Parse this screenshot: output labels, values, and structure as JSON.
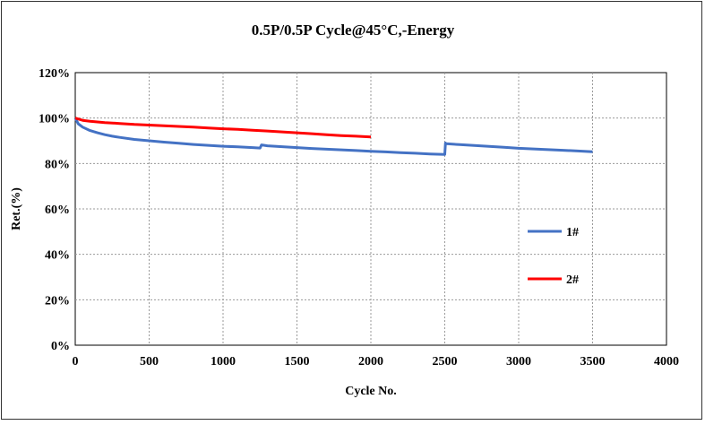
{
  "chart_data": {
    "type": "line",
    "title": "0.5P/0.5P Cycle@45°C,-Energy",
    "xlabel": "Cycle No.",
    "ylabel": "Ret.(%)",
    "xlim": [
      0,
      4000
    ],
    "ylim": [
      0,
      120
    ],
    "x_ticks": [
      0,
      500,
      1000,
      1500,
      2000,
      2500,
      3000,
      3500,
      4000
    ],
    "y_ticks": [
      0,
      20,
      40,
      60,
      80,
      100,
      120
    ],
    "x_tick_labels": [
      "0",
      "500",
      "1000",
      "1500",
      "2000",
      "2500",
      "3000",
      "3500",
      "4000"
    ],
    "y_tick_labels": [
      "0%",
      "20%",
      "40%",
      "60%",
      "80%",
      "100%",
      "120%"
    ],
    "grid": true,
    "legend_position": "right",
    "series": [
      {
        "name": "1#",
        "color": "#4472C4",
        "x": [
          0,
          20,
          50,
          100,
          150,
          200,
          250,
          300,
          400,
          500,
          600,
          700,
          800,
          900,
          1000,
          1100,
          1200,
          1250,
          1260,
          1300,
          1400,
          1500,
          1600,
          1700,
          1800,
          1900,
          2000,
          2100,
          2200,
          2300,
          2400,
          2500,
          2505,
          2510,
          2600,
          2700,
          2800,
          2900,
          3000,
          3100,
          3200,
          3300,
          3400,
          3500
        ],
        "y": [
          100,
          97.5,
          96.0,
          94.5,
          93.5,
          92.7,
          92.0,
          91.5,
          90.6,
          90.0,
          89.4,
          88.9,
          88.4,
          88.0,
          87.6,
          87.3,
          87.0,
          86.8,
          88.2,
          87.8,
          87.4,
          87.0,
          86.6,
          86.3,
          86.0,
          85.7,
          85.4,
          85.1,
          84.8,
          84.5,
          84.2,
          84.0,
          89.0,
          88.7,
          88.3,
          87.9,
          87.5,
          87.1,
          86.7,
          86.4,
          86.1,
          85.8,
          85.5,
          85.2
        ]
      },
      {
        "name": "2#",
        "color": "#FF0000",
        "x": [
          0,
          50,
          100,
          200,
          300,
          400,
          500,
          600,
          700,
          800,
          900,
          1000,
          1100,
          1200,
          1300,
          1400,
          1500,
          1600,
          1700,
          1800,
          1900,
          2000
        ],
        "y": [
          100,
          99.0,
          98.6,
          98.0,
          97.6,
          97.2,
          96.9,
          96.6,
          96.3,
          96.0,
          95.6,
          95.3,
          95.0,
          94.6,
          94.3,
          93.9,
          93.5,
          93.1,
          92.7,
          92.3,
          92.0,
          91.7
        ]
      }
    ]
  }
}
